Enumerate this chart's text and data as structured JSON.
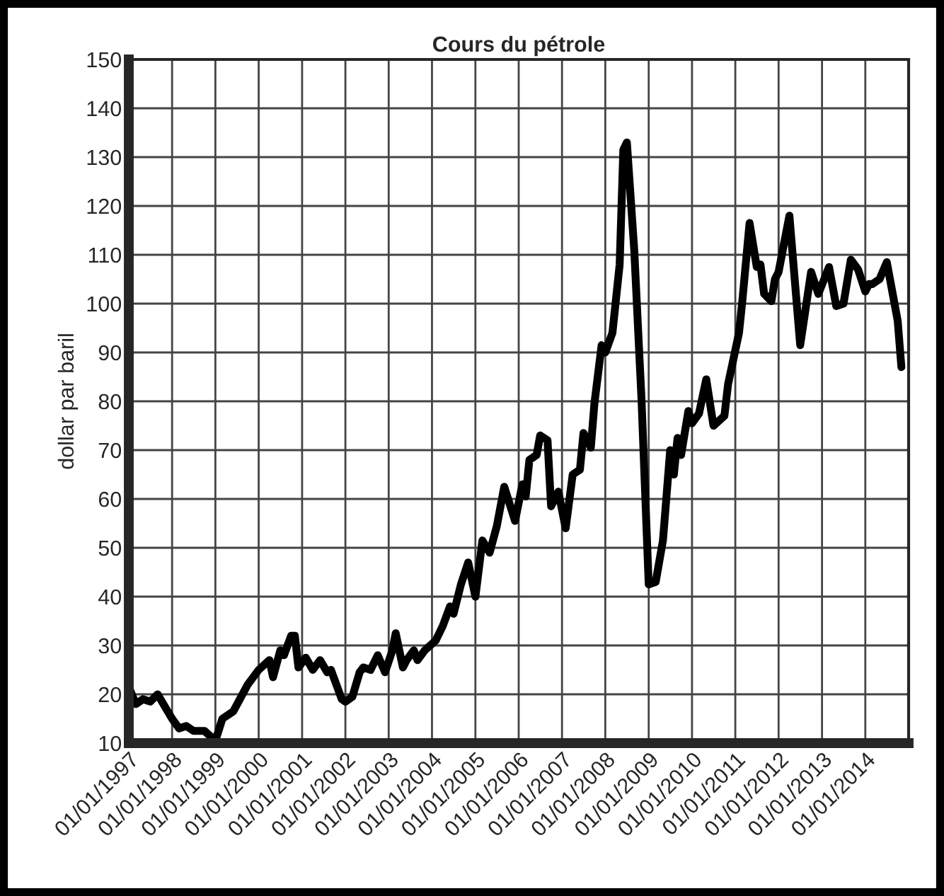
{
  "chart_data": {
    "type": "line",
    "title": "Cours du pétrole",
    "ylabel": "dollar par baril",
    "x": [
      "1997-01",
      "1997-03",
      "1997-05",
      "1997-07",
      "1997-09",
      "1998-01",
      "1998-03",
      "1998-05",
      "1998-07",
      "1998-10",
      "1999-01",
      "1999-03",
      "1999-06",
      "1999-10",
      "2000-01",
      "2000-04",
      "2000-05",
      "2000-07",
      "2000-08",
      "2000-10",
      "2000-11",
      "2000-12",
      "2001-02",
      "2001-04",
      "2001-06",
      "2001-08",
      "2001-09",
      "2001-12",
      "2002-01",
      "2002-03",
      "2002-05",
      "2002-06",
      "2002-08",
      "2002-10",
      "2002-12",
      "2003-02",
      "2003-03",
      "2003-05",
      "2003-06",
      "2003-08",
      "2003-09",
      "2003-11",
      "2004-02",
      "2004-04",
      "2004-06",
      "2004-07",
      "2004-09",
      "2004-11",
      "2005-01",
      "2005-03",
      "2005-05",
      "2005-07",
      "2005-09",
      "2005-12",
      "2006-02",
      "2006-03",
      "2006-04",
      "2006-06",
      "2006-07",
      "2006-09",
      "2006-10",
      "2006-12",
      "2007-02",
      "2007-04",
      "2007-06",
      "2007-07",
      "2007-09",
      "2007-10",
      "2007-12",
      "2008-01",
      "2008-03",
      "2008-05",
      "2008-06",
      "2008-07",
      "2008-09",
      "2008-11",
      "2009-01",
      "2009-03",
      "2009-05",
      "2009-07",
      "2009-08",
      "2009-09",
      "2009-10",
      "2009-12",
      "2010-01",
      "2010-03",
      "2010-05",
      "2010-07",
      "2010-10",
      "2010-11",
      "2011-02",
      "2011-03",
      "2011-05",
      "2011-07",
      "2011-08",
      "2011-09",
      "2011-11",
      "2011-12",
      "2012-01",
      "2012-04",
      "2012-07",
      "2012-10",
      "2012-12",
      "2013-03",
      "2013-05",
      "2013-07",
      "2013-09",
      "2013-11",
      "2014-01",
      "2014-02",
      "2014-03",
      "2014-05",
      "2014-07",
      "2014-10",
      "2014-11"
    ],
    "series": [
      {
        "color": "#000000",
        "values": [
          21.5,
          18,
          19,
          18.5,
          20,
          15,
          13,
          13.5,
          12.5,
          12.5,
          10.5,
          15,
          16.5,
          22,
          25,
          27,
          23.5,
          29,
          28,
          32,
          32,
          25.5,
          27.5,
          25,
          27,
          24.5,
          25,
          19,
          18.5,
          19.5,
          24.5,
          25.5,
          25,
          28,
          24.5,
          29,
          32.5,
          25.5,
          27,
          29,
          27,
          29,
          31,
          34,
          38,
          36.5,
          42.5,
          47,
          40,
          51.5,
          49,
          54.5,
          62.5,
          55.5,
          63,
          60.5,
          68,
          69,
          73,
          72,
          58.5,
          61.5,
          54,
          65,
          66,
          73.5,
          70.5,
          79.5,
          91.5,
          90,
          94,
          108,
          131.5,
          133,
          111,
          80.5,
          42.5,
          43,
          51.5,
          70,
          65,
          72.5,
          69,
          78,
          75.5,
          77.5,
          84.5,
          75,
          77,
          83.5,
          94,
          100.5,
          116.5,
          107.5,
          108,
          102,
          100.5,
          105,
          106.5,
          118,
          91.5,
          106.5,
          102,
          107.5,
          99.5,
          100,
          109,
          107,
          102.5,
          104,
          104,
          105,
          108.5,
          96.5,
          87
        ]
      }
    ],
    "xlim": [
      "1997-01-01",
      "2015-01-01"
    ],
    "xticks": [
      {
        "value": "1997-01-01",
        "label": "01/01/1997"
      },
      {
        "value": "1998-01-01",
        "label": "01/01/1998"
      },
      {
        "value": "1999-01-01",
        "label": "01/01/1999"
      },
      {
        "value": "2000-01-01",
        "label": "01/01/2000"
      },
      {
        "value": "2001-01-01",
        "label": "01/01/2001"
      },
      {
        "value": "2002-01-01",
        "label": "01/01/2002"
      },
      {
        "value": "2003-01-01",
        "label": "01/01/2003"
      },
      {
        "value": "2004-01-01",
        "label": "01/01/2004"
      },
      {
        "value": "2005-01-01",
        "label": "01/01/2005"
      },
      {
        "value": "2006-01-01",
        "label": "01/01/2006"
      },
      {
        "value": "2007-01-01",
        "label": "01/01/2007"
      },
      {
        "value": "2008-01-01",
        "label": "01/01/2008"
      },
      {
        "value": "2009-01-01",
        "label": "01/01/2009"
      },
      {
        "value": "2010-01-01",
        "label": "01/01/2010"
      },
      {
        "value": "2011-01-01",
        "label": "01/01/2011"
      },
      {
        "value": "2012-01-01",
        "label": "01/01/2012"
      },
      {
        "value": "2013-01-01",
        "label": "01/01/2013"
      },
      {
        "value": "2014-01-01",
        "label": "01/01/2014"
      },
      {
        "value": "2015-01-01",
        "label": null
      }
    ],
    "ylim": [
      10,
      150
    ],
    "yticks": [
      10,
      20,
      30,
      40,
      50,
      60,
      70,
      80,
      90,
      100,
      110,
      120,
      130,
      140,
      150
    ],
    "grid": true,
    "marker": "none",
    "line_style": "solid"
  }
}
